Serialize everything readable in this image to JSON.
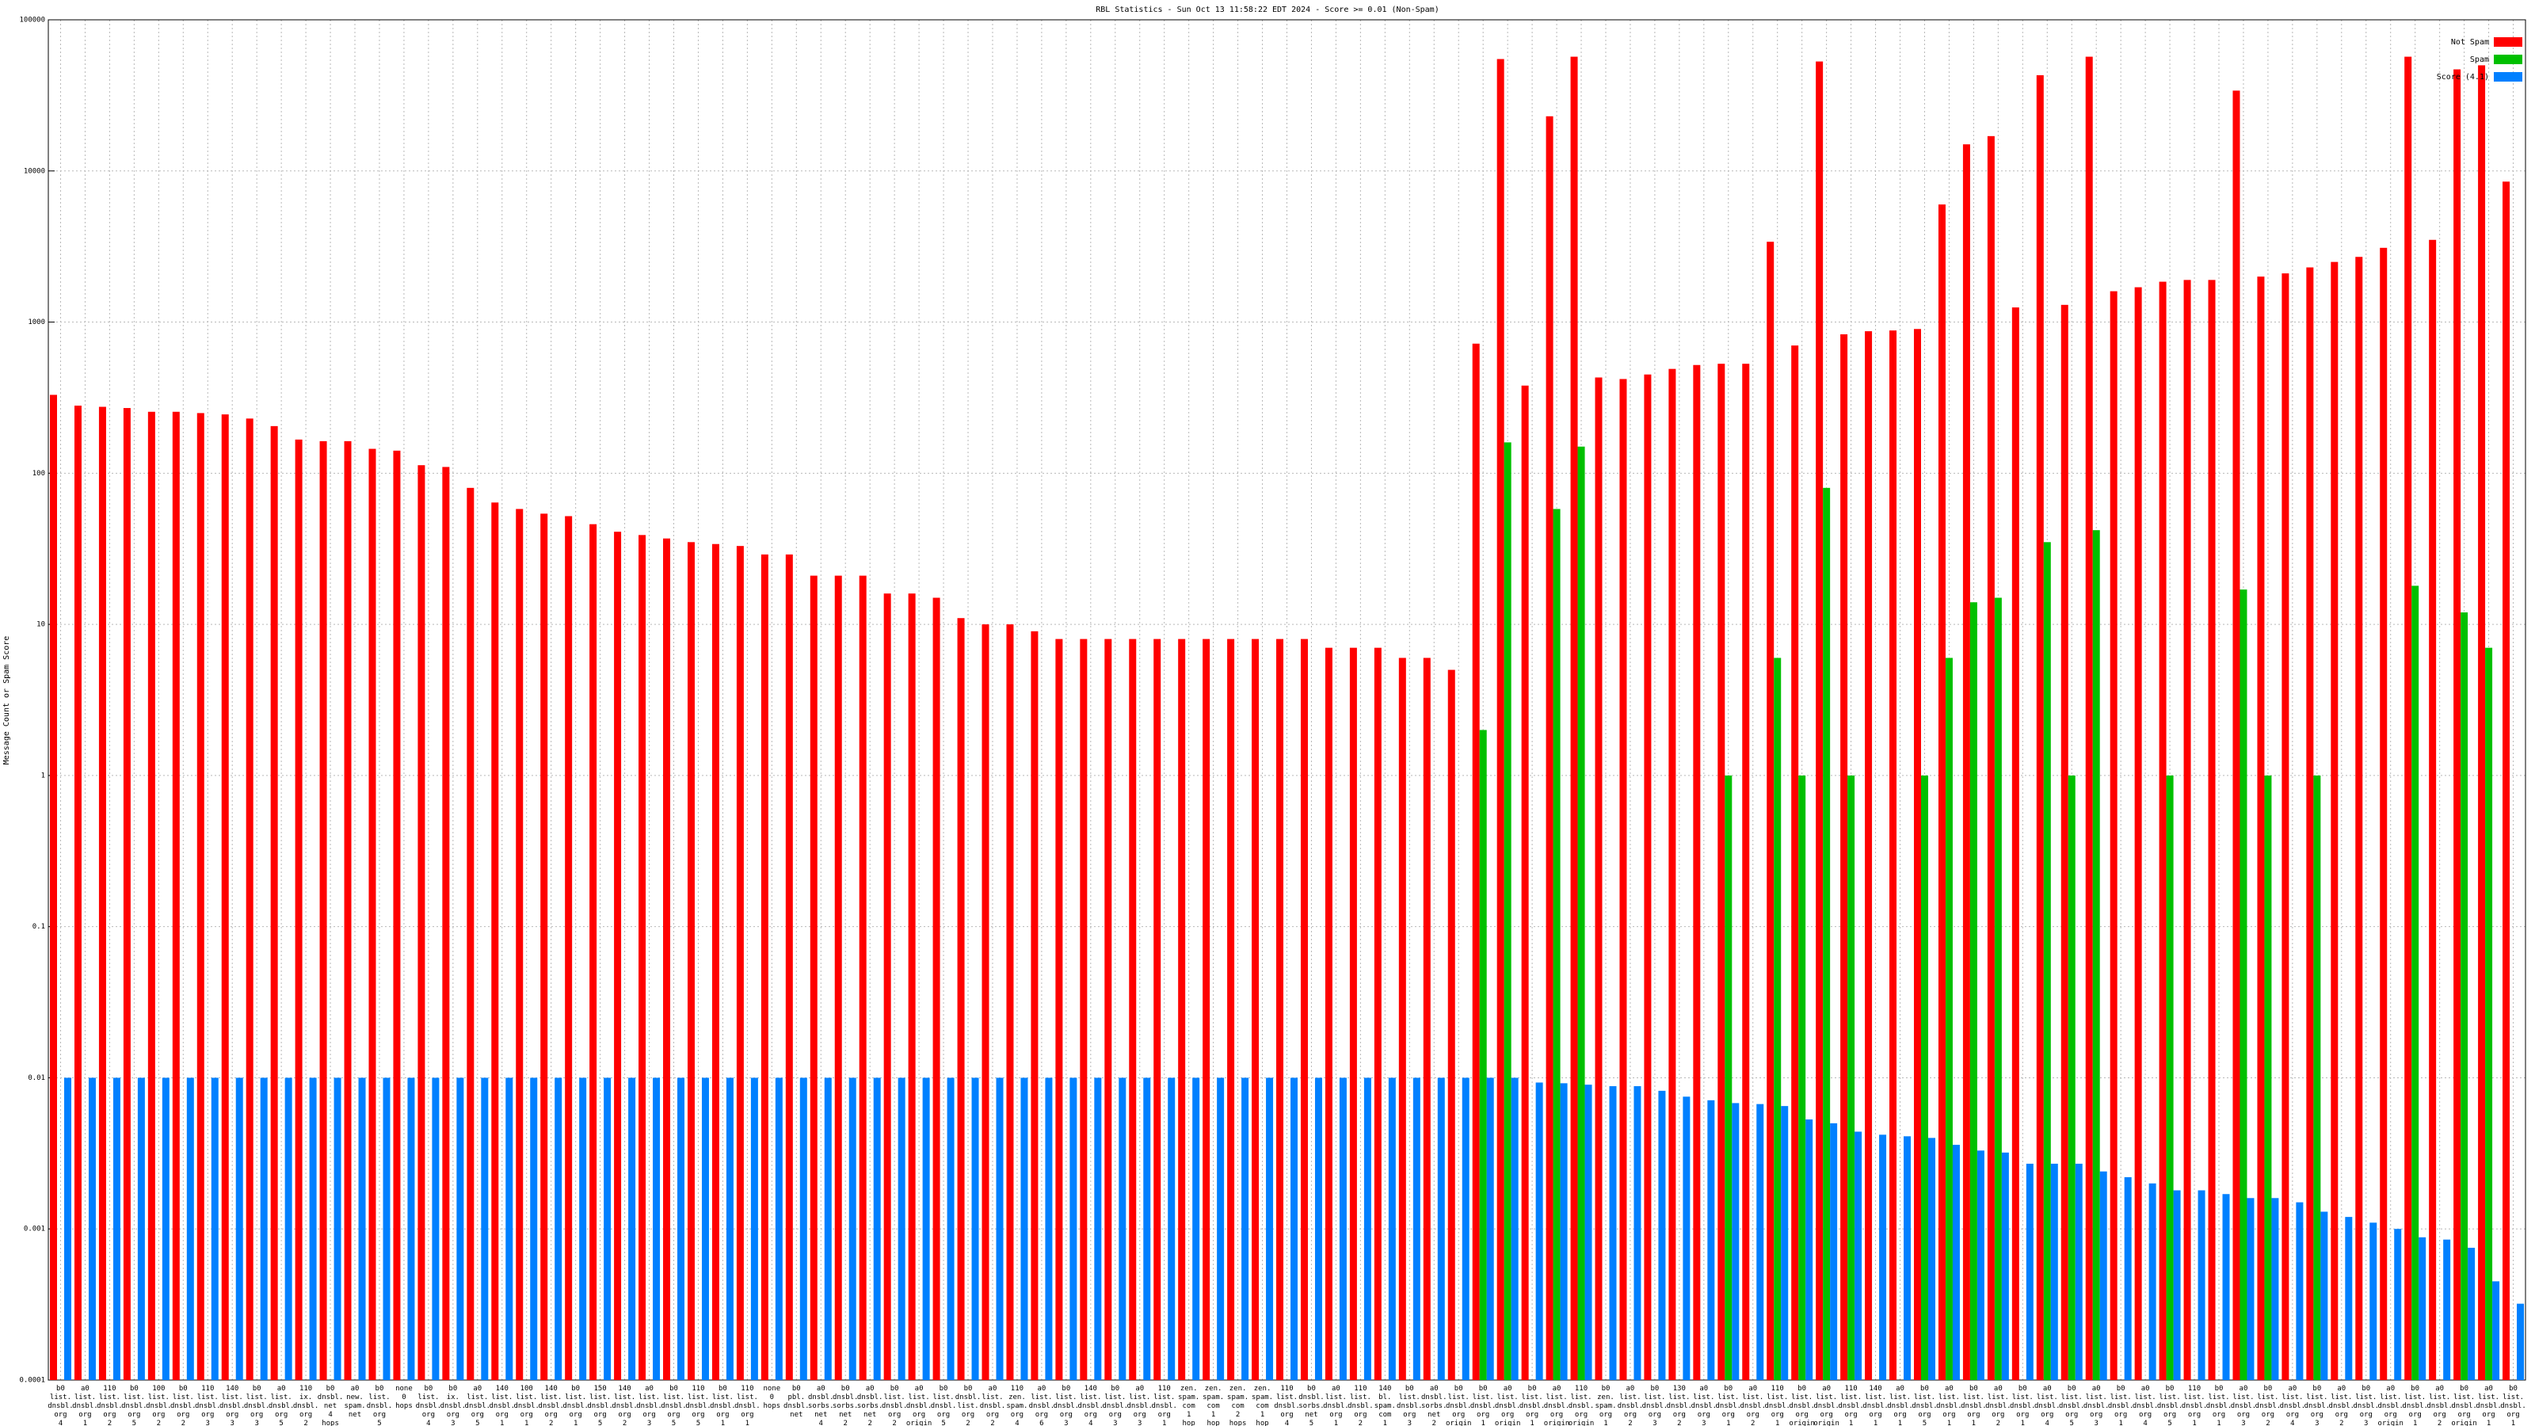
{
  "chart_data": {
    "type": "bar",
    "title": "RBL Statistics - Sun Oct 13 11:58:22 EDT 2024 - Score >= 0.01 (Non-Spam)",
    "y_label": "Message Count or Spam Score",
    "log_scale": true,
    "grid": true,
    "legend": "top-right",
    "ylim": [
      0.0001,
      100000
    ],
    "yticks": [
      0.0001,
      0.001,
      0.01,
      0.1,
      1,
      10,
      100,
      1000,
      10000,
      100000
    ],
    "categories": [
      "b0 list. dnsbl. org 4 hops",
      "a0 list. dnsbl. org 1 hop",
      "110 list. dnsbl. org 2 hops",
      "b0 list. dnsbl. org 5 hops",
      "100 list. dnsbl. org 2 hops",
      "b0 list. dnsbl. org 2 hops",
      "110 list. dnsbl. org 3 hops",
      "140 list. dnsbl. org 3 hops",
      "b0 list. dnsbl. org 3 hops",
      "a0 list. dnsbl. org 5 hops",
      "110 ix. dnsbl. org 2 hops",
      "b0 dnsbl. net 4 hops",
      "a0 new. spam. net",
      "b0 list. dnsbl. org 5 hops",
      "none 0 hops",
      "b0 list. dnsbl. org 4 hops",
      "b0 ix. dnsbl. org 3 hops",
      "a0 list. dnsbl. org 5 hops",
      "140 list. dnsbl. org 1 hop",
      "100 list. dnsbl. org 1 hop",
      "140 list. dnsbl. org 2 hops",
      "b0 list. dnsbl. org 1 hop",
      "150 list. dnsbl. org 5 hops",
      "140 list. dnsbl. org 2 hops",
      "a0 list. dnsbl. org 3 hops",
      "b0 list. dnsbl. org 5 hops",
      "110 list. dnsbl. org 5 hops",
      "b0 list. dnsbl. org 1 hop",
      "110 list. dnsbl. org 1 hop",
      "none 0 hops",
      "b0 pbl. dnsbl. net",
      "a0 dnsbl. sorbs. net 4 hops",
      "b0 dnsbl. sorbs. net 2 hops",
      "a0 dnsbl. sorbs. net 2 hops",
      "b0 list. dnsbl. org 2 hops",
      "a0 list. dnsbl. org origin",
      "b0 list. dnsbl. org 5 hops",
      "b0 dnsbl. list. org 2 hops",
      "a0 list. dnsbl. org 2 hops",
      "110 zen. spam. org 4 hops",
      "a0 list. dnsbl. org 6 hops",
      "b0 list. dnsbl. org 3 hops",
      "140 list. dnsbl. org 4 hops",
      "b0 list. dnsbl. org 3 hops",
      "a0 list. dnsbl. org 3 hops",
      "110 list. dnsbl. org 1 hop",
      "zen. spam. com 1 hop",
      "zen. spam. com 1 hop",
      "zen. spam. com 2 hops",
      "zen. spam. com 1 hop",
      "110 list. dnsbl. org 4 hops",
      "b0 dnsbl. sorbs. net 5 hops",
      "a0 list. dnsbl. org 1 hop",
      "110 list. dnsbl. org 2 hops",
      "140 bl. spam. com 1 hop",
      "b0 list. dnsbl. org 3 hops",
      "a0 dnsbl. sorbs. net 2 hops",
      "b0 list. dnsbl. org origin",
      "b0 list. dnsbl. org 1 hop",
      "a0 list. dnsbl. org origin",
      "b0 list. dnsbl. org 1 hop",
      "a0 list. dnsbl. org origin",
      "110 list. dnsbl. org origin",
      "b0 zen. spam. org 1 hop",
      "a0 list. dnsbl. org 2 hops",
      "b0 list. dnsbl. org 3 hops",
      "130 list. dnsbl. org 2 hops",
      "a0 list. dnsbl. org 3 hops",
      "b0 list. dnsbl. org 1 hop",
      "a0 list. dnsbl. org 2 hops",
      "110 list. dnsbl. org 1 hop",
      "b0 list. dnsbl. org origin",
      "a0 list. dnsbl. org origin",
      "110 list. dnsbl. org 1 hop",
      "140 list. dnsbl. org 1 hop",
      "a0 list. dnsbl. org 1 hop",
      "b0 list. dnsbl. org 5 hops",
      "a0 list. dnsbl. org 1 hop",
      "b0 list. dnsbl. org 1 hop",
      "a0 list. dnsbl. org 2 hops",
      "b0 list. dnsbl. org 1 hop",
      "a0 list. dnsbl. org 4 hops",
      "b0 list. dnsbl. org 5 hops",
      "a0 list. dnsbl. org 3 hops",
      "b0 list. dnsbl. org 1 hop",
      "a0 list. dnsbl. org 4 hops",
      "b0 list. dnsbl. org 5 hops",
      "110 list. dnsbl. org 1 hop",
      "b0 list. dnsbl. org 1 hop",
      "a0 list. dnsbl. org 3 hops",
      "b0 list. dnsbl. org 2 hops",
      "a0 list. dnsbl. org 4 hops",
      "b0 list. dnsbl. org 3 hops",
      "a0 list. dnsbl. org 2 hops",
      "b0 list. dnsbl. org 3 hops",
      "a0 list. dnsbl. org origin",
      "b0 list. dnsbl. org 1 hop",
      "a0 list. dnsbl. org 2 hops",
      "b0 list. dnsbl. org origin",
      "a0 list. dnsbl. org 1 hop",
      "b0 list. dnsbl. org 1 hop"
    ],
    "series": [
      {
        "name": "Not Spam",
        "color": "#ff0000",
        "values": [
          330,
          280,
          275,
          270,
          255,
          255,
          250,
          245,
          230,
          205,
          167,
          163,
          163,
          145,
          141,
          113,
          110,
          80,
          64,
          58,
          54,
          52,
          46,
          41,
          39,
          37,
          35,
          34,
          33,
          29,
          29,
          21,
          21,
          21,
          16,
          16,
          15,
          11,
          10,
          10,
          9,
          8,
          8,
          8,
          8,
          8,
          8,
          8,
          8,
          8,
          8,
          8,
          7,
          7,
          7,
          6,
          6,
          5,
          720,
          55000,
          380,
          23000,
          57000,
          430,
          420,
          450,
          490,
          520,
          530,
          530,
          3400,
          700,
          53000,
          830,
          870,
          880,
          900,
          6000,
          15000,
          17000,
          1250,
          43000,
          1300,
          57000,
          1600,
          1700,
          1850,
          1900,
          1900,
          34000,
          2000,
          2100,
          2300,
          2500,
          2700,
          3100,
          57000,
          3500,
          47000,
          50000,
          8500
        ]
      },
      {
        "name": "Spam",
        "color": "#00c000",
        "values": [
          null,
          null,
          null,
          null,
          null,
          null,
          null,
          null,
          null,
          null,
          null,
          null,
          null,
          null,
          null,
          null,
          null,
          null,
          null,
          null,
          null,
          null,
          null,
          null,
          null,
          null,
          null,
          null,
          null,
          null,
          null,
          null,
          null,
          null,
          null,
          null,
          null,
          null,
          null,
          null,
          null,
          null,
          null,
          null,
          null,
          null,
          null,
          null,
          null,
          null,
          null,
          null,
          null,
          null,
          null,
          null,
          null,
          null,
          2,
          160,
          null,
          58,
          150,
          null,
          null,
          null,
          null,
          null,
          1,
          null,
          6,
          1,
          80,
          1,
          null,
          null,
          1,
          6,
          14,
          15,
          null,
          35,
          1,
          42,
          null,
          null,
          1,
          null,
          null,
          17,
          1,
          null,
          1,
          null,
          null,
          null,
          18,
          null,
          12,
          7,
          null
        ]
      },
      {
        "name": "Score (4.1)",
        "color": "#0080ff",
        "values": [
          0.01,
          0.01,
          0.01,
          0.01,
          0.01,
          0.01,
          0.01,
          0.01,
          0.01,
          0.01,
          0.01,
          0.01,
          0.01,
          0.01,
          0.01,
          0.01,
          0.01,
          0.01,
          0.01,
          0.01,
          0.01,
          0.01,
          0.01,
          0.01,
          0.01,
          0.01,
          0.01,
          0.01,
          0.01,
          0.01,
          0.01,
          0.01,
          0.01,
          0.01,
          0.01,
          0.01,
          0.01,
          0.01,
          0.01,
          0.01,
          0.01,
          0.01,
          0.01,
          0.01,
          0.01,
          0.01,
          0.01,
          0.01,
          0.01,
          0.01,
          0.01,
          0.01,
          0.01,
          0.01,
          0.01,
          0.01,
          0.01,
          0.01,
          0.01,
          0.01,
          0.0093,
          0.0092,
          0.009,
          0.0088,
          0.0088,
          0.0082,
          0.0075,
          0.0071,
          0.0068,
          0.0067,
          0.0065,
          0.0053,
          0.005,
          0.0044,
          0.0042,
          0.0041,
          0.004,
          0.0036,
          0.0033,
          0.0032,
          0.0027,
          0.0027,
          0.0027,
          0.0024,
          0.0022,
          0.002,
          0.0018,
          0.0018,
          0.0017,
          0.0016,
          0.0016,
          0.0015,
          0.0013,
          0.0012,
          0.0011,
          0.001,
          0.00088,
          0.00085,
          0.00075,
          0.00045,
          0.00032
        ]
      }
    ]
  }
}
